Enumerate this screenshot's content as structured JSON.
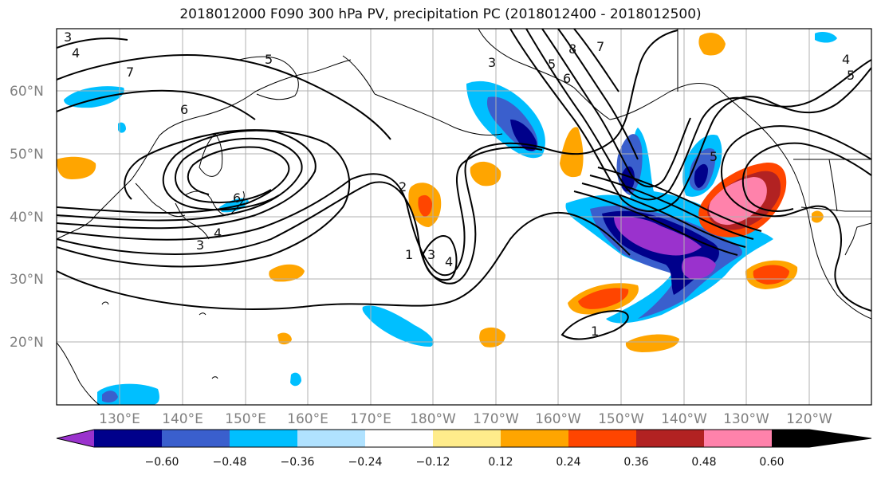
{
  "title": "2018012000 F090 300 hPa PV, precipitation PC (2018012400 - 2018012500)",
  "lat_labels": [
    "60°N",
    "50°N",
    "40°N",
    "30°N",
    "20°N"
  ],
  "lon_labels": [
    "130°E",
    "140°E",
    "150°E",
    "160°E",
    "170°E",
    "180°W",
    "170°W",
    "160°W",
    "150°W",
    "140°W",
    "130°W",
    "120°W"
  ],
  "colorbar": {
    "levels": [
      "−0.60",
      "−0.48",
      "−0.36",
      "−0.24",
      "−0.12",
      "0.12",
      "0.24",
      "0.36",
      "0.48",
      "0.60"
    ],
    "colors": [
      "#9a32cd",
      "#00008b",
      "#3a5fcd",
      "#00bfff",
      "#b0e2ff",
      "#ffffff",
      "#ffec8b",
      "#ffa500",
      "#ff4500",
      "#b22222",
      "#ff82ab"
    ]
  },
  "contour_labels": [
    "3",
    "4",
    "5",
    "7",
    "6",
    "6",
    "3",
    "4",
    "2",
    "1",
    "3",
    "4",
    "3",
    "8",
    "7",
    "6",
    "5",
    "4",
    "5",
    "5",
    "1"
  ],
  "colors": {
    "contour": "#000000",
    "coast": "#000000",
    "grid": "#b0b0b0",
    "purple": "#9a32cd",
    "navy": "#00008b",
    "royalblue": "#3a5fcd",
    "deepskyblue": "#00bfff",
    "lightskyblue": "#b0e2ff",
    "khaki": "#ffec8b",
    "orange": "#ffa500",
    "orangered": "#ff4500",
    "firebrick": "#b22222",
    "pink": "#ff82ab"
  }
}
